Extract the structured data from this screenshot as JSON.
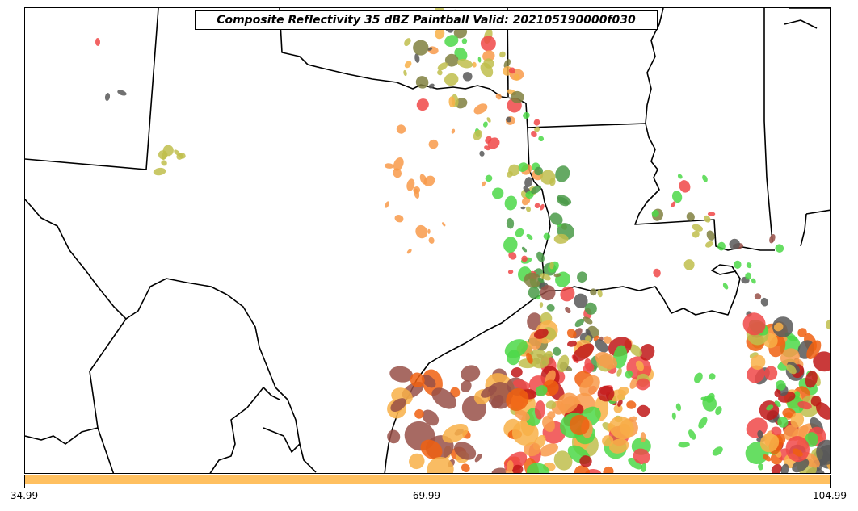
{
  "title": "Composite Reflectivity 35 dBZ Paintball Valid: 202105190000f030",
  "colorbar": {
    "color": "#ffc060",
    "ticks": [
      "34.99",
      "69.99",
      "104.99"
    ]
  },
  "palette": {
    "red": "#f04848",
    "orange": "#f89a4a",
    "dark_orange": "#f06010",
    "light_orange": "#f8b048",
    "green": "#4cd848",
    "dark_green": "#4a9a48",
    "olive": "#c0be4c",
    "dark_olive": "#808040",
    "maroon": "#985048",
    "gray": "#585858",
    "dark_red": "#c01818"
  }
}
